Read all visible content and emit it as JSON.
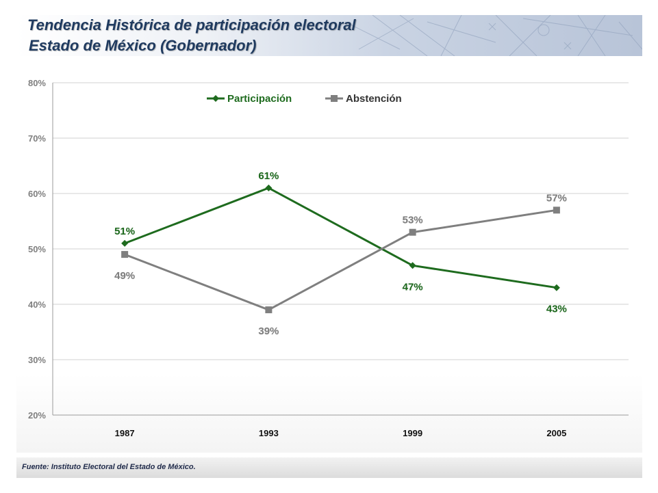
{
  "header": {
    "title_line1": "Tendencia Histórica de participación electoral",
    "title_line2": "Estado de México (Gobernador)"
  },
  "footer": {
    "source": "Fuente: Instituto Electoral del Estado de México."
  },
  "colors": {
    "participacion": "#1e6b1e",
    "abstencion": "#7f7f7f",
    "title": "#1f3a5f"
  },
  "chart_data": {
    "type": "line",
    "title": "",
    "xlabel": "",
    "ylabel": "",
    "categories": [
      "1987",
      "1993",
      "1999",
      "2005"
    ],
    "ylim": [
      20,
      80
    ],
    "yticks": [
      20,
      30,
      40,
      50,
      60,
      70,
      80
    ],
    "ytick_labels": [
      "20%",
      "30%",
      "40%",
      "50%",
      "60%",
      "70%",
      "80%"
    ],
    "grid": true,
    "legend": "top-center",
    "series": [
      {
        "name": "Participación",
        "marker": "diamond",
        "values": [
          51,
          61,
          47,
          43
        ],
        "labels": [
          "51%",
          "61%",
          "47%",
          "43%"
        ]
      },
      {
        "name": "Abstención",
        "marker": "square",
        "values": [
          49,
          39,
          53,
          57
        ],
        "labels": [
          "49%",
          "39%",
          "53%",
          "57%"
        ]
      }
    ]
  }
}
